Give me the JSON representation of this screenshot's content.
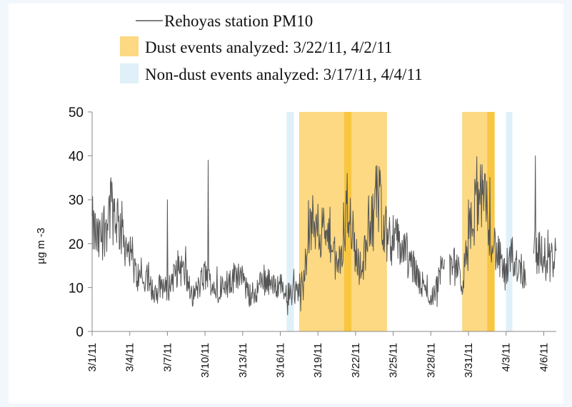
{
  "chart_data": {
    "type": "line",
    "title": "",
    "xlabel": "",
    "ylabel": "µg m -3",
    "ylim": [
      0,
      50
    ],
    "yticks": [
      0,
      10,
      20,
      30,
      40,
      50
    ],
    "x_range": [
      "3/1/11",
      "4/7/11"
    ],
    "xticks": [
      "3/1/11",
      "3/4/11",
      "3/7/11",
      "3/10/11",
      "3/13/11",
      "3/16/11",
      "3/19/11",
      "3/22/11",
      "3/25/11",
      "3/28/11",
      "3/31/11",
      "4/3/11",
      "4/6/11"
    ],
    "grid": false,
    "legend_position": "top",
    "legend": [
      {
        "label": "Rehoyas station PM10",
        "kind": "line",
        "color": "#555555"
      },
      {
        "label": "Dust events analyzed: 3/22/11, 4/2/11",
        "kind": "patch",
        "color": "#fcd982"
      },
      {
        "label": "Non-dust events analyzed: 3/17/11, 4/4/11",
        "kind": "patch",
        "color": "#dff0f8"
      }
    ],
    "shaded_regions": [
      {
        "category": "non-dust",
        "start": "3/16/11 12:00",
        "end": "3/17/11 02:00",
        "color": "#dff0f8"
      },
      {
        "category": "dust",
        "start": "3/17/11 12:00",
        "end": "3/24/11 12:00",
        "color": "#fcd982"
      },
      {
        "category": "dust-highlight",
        "start": "3/21/11 02:00",
        "end": "3/21/11 16:00",
        "color": "#f8c640"
      },
      {
        "category": "dust",
        "start": "3/30/11 12:00",
        "end": "4/2/11 02:00",
        "color": "#fcd982"
      },
      {
        "category": "dust-highlight",
        "start": "4/1/11 12:00",
        "end": "4/2/11 02:00",
        "color": "#f8c640"
      },
      {
        "category": "non-dust",
        "start": "4/3/11 00:00",
        "end": "4/3/11 12:00",
        "color": "#dff0f8"
      }
    ],
    "series": [
      {
        "name": "Rehoyas station PM10",
        "color": "#555555",
        "baseline": [
          [
            "3/1/11 00:00",
            24
          ],
          [
            "3/1/11 12:00",
            20
          ],
          [
            "3/2/11 00:00",
            24
          ],
          [
            "3/2/11 12:00",
            29
          ],
          [
            "3/3/11 00:00",
            26
          ],
          [
            "3/3/11 12:00",
            22
          ],
          [
            "3/4/11 00:00",
            17
          ],
          [
            "3/4/11 12:00",
            13
          ],
          [
            "3/5/11 00:00",
            11
          ],
          [
            "3/5/11 12:00",
            12
          ],
          [
            "3/6/11 00:00",
            8
          ],
          [
            "3/6/11 12:00",
            11
          ],
          [
            "3/7/11 00:00",
            9
          ],
          [
            "3/7/11 12:00",
            13
          ],
          [
            "3/8/11 00:00",
            15
          ],
          [
            "3/8/11 12:00",
            12
          ],
          [
            "3/9/11 00:00",
            8
          ],
          [
            "3/9/11 12:00",
            10
          ],
          [
            "3/10/11 00:00",
            13
          ],
          [
            "3/10/11 12:00",
            11
          ],
          [
            "3/11/11 00:00",
            9
          ],
          [
            "3/11/11 12:00",
            12
          ],
          [
            "3/12/11 00:00",
            10
          ],
          [
            "3/12/11 12:00",
            14
          ],
          [
            "3/13/11 00:00",
            12
          ],
          [
            "3/13/11 12:00",
            8
          ],
          [
            "3/14/11 00:00",
            9
          ],
          [
            "3/14/11 12:00",
            11
          ],
          [
            "3/15/11 00:00",
            12
          ],
          [
            "3/15/11 12:00",
            10
          ],
          [
            "3/16/11 00:00",
            11
          ],
          [
            "3/16/11 12:00",
            9
          ],
          [
            "3/17/11 00:00",
            8
          ],
          [
            "3/17/11 12:00",
            10
          ],
          [
            "3/18/11 00:00",
            17
          ],
          [
            "3/18/11 12:00",
            24
          ],
          [
            "3/19/11 00:00",
            25
          ],
          [
            "3/19/11 12:00",
            20
          ],
          [
            "3/20/11 00:00",
            22
          ],
          [
            "3/20/11 12:00",
            14
          ],
          [
            "3/21/11 00:00",
            18
          ],
          [
            "3/21/11 10:00",
            30
          ],
          [
            "3/22/11 00:00",
            18
          ],
          [
            "3/22/11 12:00",
            13
          ],
          [
            "3/23/11 00:00",
            23
          ],
          [
            "3/23/11 12:00",
            30
          ],
          [
            "3/24/11 00:00",
            29
          ],
          [
            "3/24/11 12:00",
            22
          ],
          [
            "3/25/11 00:00",
            21
          ],
          [
            "3/25/11 12:00",
            20
          ],
          [
            "3/26/11 00:00",
            18
          ],
          [
            "3/26/11 12:00",
            15
          ],
          [
            "3/27/11 00:00",
            12
          ],
          [
            "3/27/11 12:00",
            9
          ],
          [
            "3/28/11 00:00",
            8
          ],
          [
            "3/28/11 12:00",
            10
          ],
          [
            "3/29/11 00:00",
            18
          ],
          [
            "3/29/11 12:00",
            14
          ],
          [
            "3/30/11 00:00",
            15
          ],
          [
            "3/30/11 12:00",
            11
          ],
          [
            "3/31/11 00:00",
            20
          ],
          [
            "3/31/11 12:00",
            28
          ],
          [
            "4/1/11 00:00",
            30
          ],
          [
            "4/1/11 12:00",
            27
          ],
          [
            "4/2/11 00:00",
            20
          ],
          [
            "4/2/11 12:00",
            16
          ],
          [
            "4/3/11 00:00",
            12
          ],
          [
            "4/3/11 12:00",
            17
          ],
          [
            "4/4/11 00:00",
            15
          ],
          [
            "4/4/11 12:00",
            13
          ],
          [
            "4/5/11 00:00",
            20
          ],
          [
            "4/5/11 12:00",
            18
          ],
          [
            "4/6/11 00:00",
            17
          ],
          [
            "4/6/11 12:00",
            15
          ],
          [
            "4/7/11 00:00",
            19
          ]
        ],
        "peaks": [
          [
            "3/2/11 12:00",
            35
          ],
          [
            "3/10/11 06:00",
            39
          ],
          [
            "3/7/11 00:00",
            30
          ],
          [
            "3/21/11 08:00",
            36
          ],
          [
            "3/31/11 18:00",
            34
          ],
          [
            "4/5/11 08:00",
            40
          ],
          [
            "3/19/11 00:00",
            29
          ],
          [
            "3/23/11 18:00",
            32
          ]
        ],
        "gaps": [
          [
            "3/29/11 02:00",
            "3/29/11 12:00"
          ],
          [
            "4/4/11 14:00",
            "4/5/11 04:00"
          ]
        ]
      }
    ]
  }
}
